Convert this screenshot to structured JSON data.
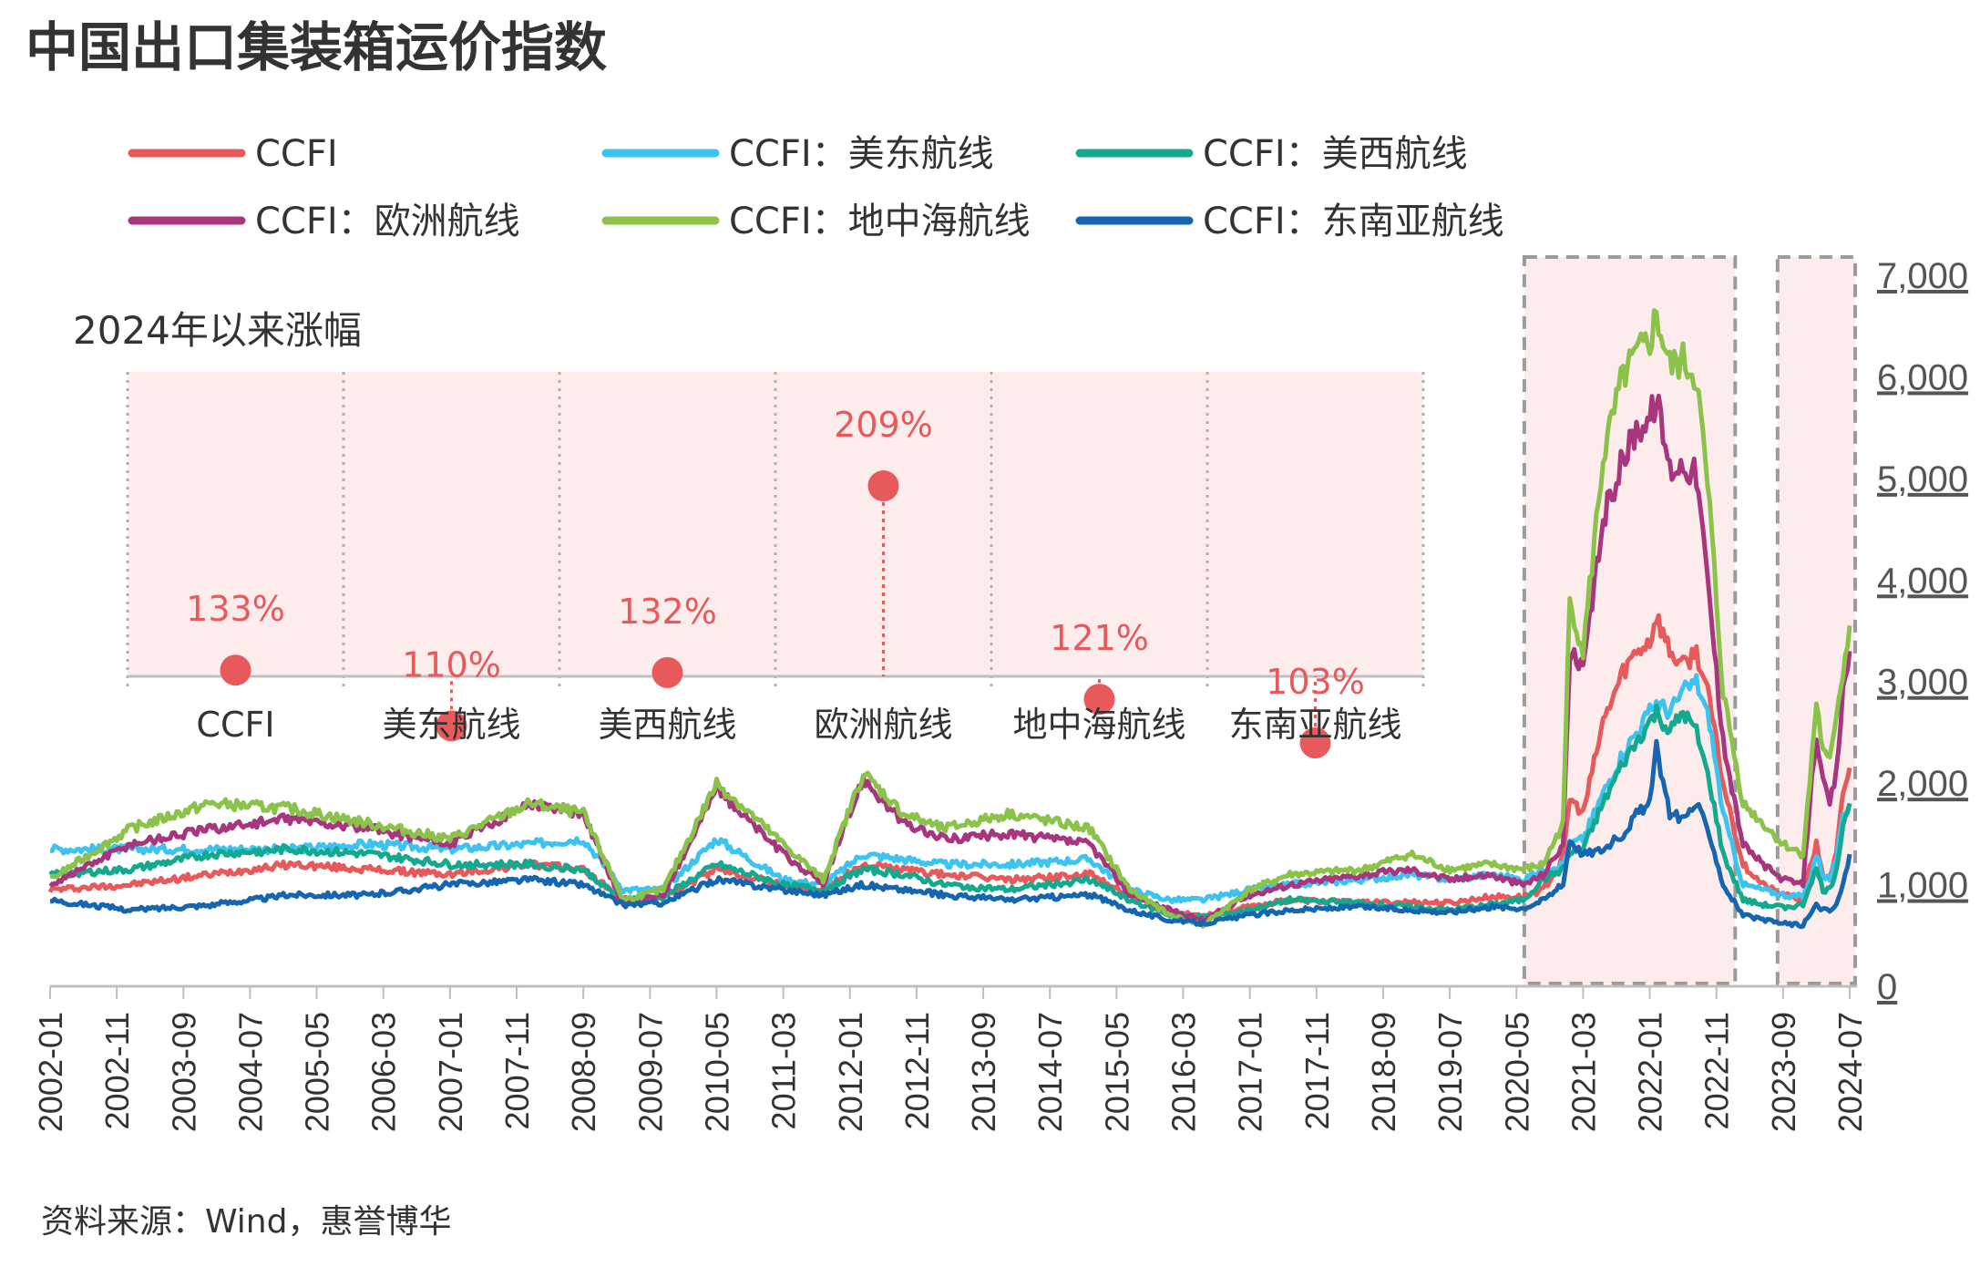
{
  "title": "中国出口集装箱运价指数",
  "source": "资料来源：Wind，惠誉博华",
  "colors": {
    "highlight_fill": "#fcecec",
    "highlight_stroke": "#9b9b9b",
    "accent": "#e8595c",
    "axis": "#bfbfbf"
  },
  "legend": [
    {
      "label": "CCFI",
      "color": "#e8595c"
    },
    {
      "label": "CCFI：美东航线",
      "color": "#3cc3f0"
    },
    {
      "label": "CCFI：美西航线",
      "color": "#14a88f"
    },
    {
      "label": "CCFI：欧洲航线",
      "color": "#a8367f"
    },
    {
      "label": "CCFI：地中海航线",
      "color": "#8bc34a"
    },
    {
      "label": "CCFI：东南亚航线",
      "color": "#1565b0"
    }
  ],
  "inset": {
    "title": "2024年以来涨幅",
    "items": [
      {
        "category": "CCFI",
        "value": 133,
        "label": "133%"
      },
      {
        "category": "美东航线",
        "value": 110,
        "label": "110%"
      },
      {
        "category": "美西航线",
        "value": 132,
        "label": "132%"
      },
      {
        "category": "欧洲航线",
        "value": 209,
        "label": "209%"
      },
      {
        "category": "地中海航线",
        "value": 121,
        "label": "121%"
      },
      {
        "category": "东南亚航线",
        "value": 103,
        "label": "103%"
      }
    ]
  },
  "chart_data": {
    "type": "line",
    "title": "中国出口集装箱运价指数",
    "ylim": [
      0,
      7000
    ],
    "yticks": [
      "0",
      "1,000",
      "2,000",
      "3,000",
      "4,000",
      "5,000",
      "6,000",
      "7,000"
    ],
    "x_tick_labels": [
      "2002-01",
      "2002-11",
      "2003-09",
      "2004-07",
      "2005-05",
      "2006-03",
      "2007-01",
      "2007-11",
      "2008-09",
      "2009-07",
      "2010-05",
      "2011-03",
      "2012-01",
      "2012-11",
      "2013-09",
      "2014-07",
      "2015-05",
      "2016-03",
      "2017-01",
      "2017-11",
      "2018-09",
      "2019-07",
      "2020-05",
      "2021-03",
      "2022-01",
      "2022-11",
      "2023-09",
      "2024-07"
    ],
    "x_range": [
      "2002-01",
      "2024-07"
    ],
    "highlight_periods": [
      [
        "2020-07",
        "2023-01"
      ],
      [
        "2023-09",
        "2024-07"
      ]
    ],
    "legend_position": "top",
    "grid": false,
    "series": [
      {
        "name": "CCFI",
        "x": [
          "2002-01",
          "2003-01",
          "2004-01",
          "2005-01",
          "2006-01",
          "2007-01",
          "2008-01",
          "2008-09",
          "2009-03",
          "2009-09",
          "2010-05",
          "2011-03",
          "2011-09",
          "2012-03",
          "2012-09",
          "2013-03",
          "2014-01",
          "2015-01",
          "2015-07",
          "2016-01",
          "2016-06",
          "2017-01",
          "2017-07",
          "2018-06",
          "2019-01",
          "2019-07",
          "2020-01",
          "2020-06",
          "2020-09",
          "2020-12",
          "2021-01",
          "2021-03",
          "2021-06",
          "2021-09",
          "2021-11",
          "2022-01",
          "2022-02",
          "2022-04",
          "2022-06",
          "2022-08",
          "2022-10",
          "2022-12",
          "2023-03",
          "2023-06",
          "2023-09",
          "2023-12",
          "2024-01",
          "2024-02",
          "2024-03",
          "2024-04",
          "2024-05",
          "2024-06",
          "2024-07"
        ],
        "values": [
          950,
          1000,
          1100,
          1200,
          1150,
          1100,
          1200,
          1150,
          850,
          880,
          1150,
          1000,
          950,
          1200,
          1150,
          1100,
          1050,
          1100,
          900,
          720,
          700,
          780,
          850,
          820,
          830,
          820,
          880,
          880,
          950,
          1250,
          1850,
          1700,
          2600,
          3100,
          3300,
          3400,
          3650,
          3300,
          3150,
          3300,
          2800,
          2000,
          1200,
          1000,
          900,
          850,
          1150,
          1400,
          1100,
          1050,
          1300,
          1900,
          2150
        ]
      },
      {
        "name": "CCFI：美东航线",
        "x": [
          "2002-01",
          "2003-01",
          "2004-01",
          "2005-01",
          "2006-01",
          "2007-01",
          "2008-01",
          "2008-09",
          "2009-03",
          "2009-09",
          "2010-05",
          "2011-03",
          "2011-09",
          "2012-03",
          "2012-09",
          "2013-03",
          "2014-01",
          "2015-01",
          "2015-07",
          "2016-01",
          "2016-06",
          "2017-01",
          "2017-07",
          "2018-06",
          "2019-01",
          "2019-07",
          "2020-01",
          "2020-06",
          "2020-09",
          "2020-12",
          "2021-01",
          "2021-03",
          "2021-06",
          "2021-09",
          "2021-11",
          "2022-01",
          "2022-02",
          "2022-04",
          "2022-06",
          "2022-08",
          "2022-10",
          "2022-12",
          "2023-03",
          "2023-06",
          "2023-09",
          "2023-12",
          "2024-01",
          "2024-02",
          "2024-03",
          "2024-04",
          "2024-05",
          "2024-06",
          "2024-07"
        ],
        "values": [
          1350,
          1350,
          1350,
          1350,
          1400,
          1350,
          1400,
          1450,
          950,
          950,
          1450,
          1050,
          1000,
          1300,
          1250,
          1200,
          1200,
          1250,
          950,
          850,
          850,
          950,
          1000,
          1050,
          1100,
          1050,
          1100,
          1050,
          1150,
          1200,
          1400,
          1450,
          1900,
          2300,
          2500,
          2700,
          2800,
          2700,
          2900,
          3000,
          2600,
          1700,
          1000,
          950,
          900,
          880,
          1050,
          1300,
          1100,
          1050,
          1250,
          1650,
          1800
        ]
      },
      {
        "name": "CCFI：美西航线",
        "x": [
          "2002-01",
          "2003-01",
          "2004-01",
          "2005-01",
          "2006-01",
          "2007-01",
          "2008-01",
          "2008-09",
          "2009-03",
          "2009-09",
          "2010-05",
          "2011-03",
          "2011-09",
          "2012-03",
          "2012-09",
          "2013-03",
          "2014-01",
          "2015-01",
          "2015-07",
          "2016-01",
          "2016-06",
          "2017-01",
          "2017-07",
          "2018-06",
          "2019-01",
          "2019-07",
          "2020-01",
          "2020-06",
          "2020-09",
          "2020-12",
          "2021-01",
          "2021-03",
          "2021-06",
          "2021-09",
          "2021-11",
          "2022-01",
          "2022-02",
          "2022-04",
          "2022-06",
          "2022-08",
          "2022-10",
          "2022-12",
          "2023-03",
          "2023-06",
          "2023-09",
          "2023-12",
          "2024-01",
          "2024-02",
          "2024-03",
          "2024-04",
          "2024-05",
          "2024-06",
          "2024-07"
        ],
        "values": [
          1100,
          1150,
          1300,
          1350,
          1300,
          1200,
          1200,
          1150,
          850,
          880,
          1200,
          1000,
          950,
          1150,
          1100,
          1000,
          950,
          1050,
          850,
          700,
          680,
          750,
          850,
          820,
          780,
          750,
          800,
          850,
          1050,
          1150,
          1300,
          1350,
          1800,
          2200,
          2400,
          2600,
          2700,
          2500,
          2700,
          2500,
          2000,
          1300,
          850,
          800,
          780,
          800,
          1000,
          1150,
          950,
          950,
          1150,
          1600,
          1800
        ]
      },
      {
        "name": "CCFI：欧洲航线",
        "x": [
          "2002-01",
          "2003-01",
          "2004-01",
          "2005-01",
          "2006-01",
          "2007-01",
          "2008-01",
          "2008-09",
          "2009-03",
          "2009-09",
          "2010-05",
          "2011-03",
          "2011-09",
          "2012-03",
          "2012-09",
          "2013-03",
          "2014-01",
          "2015-01",
          "2015-07",
          "2016-01",
          "2016-06",
          "2017-01",
          "2017-07",
          "2018-06",
          "2019-01",
          "2019-07",
          "2020-01",
          "2020-06",
          "2020-09",
          "2020-12",
          "2021-01",
          "2021-03",
          "2021-06",
          "2021-09",
          "2021-11",
          "2022-01",
          "2022-02",
          "2022-04",
          "2022-06",
          "2022-08",
          "2022-10",
          "2022-12",
          "2023-03",
          "2023-06",
          "2023-09",
          "2023-12",
          "2024-01",
          "2024-02",
          "2024-03",
          "2024-04",
          "2024-05",
          "2024-06",
          "2024-07"
        ],
        "values": [
          1000,
          1400,
          1550,
          1650,
          1550,
          1400,
          1800,
          1700,
          800,
          900,
          1950,
          1300,
          1000,
          2050,
          1600,
          1450,
          1500,
          1400,
          900,
          750,
          650,
          900,
          1000,
          1100,
          1150,
          1050,
          1100,
          1000,
          1100,
          1400,
          3300,
          3100,
          4600,
          5200,
          5500,
          5600,
          5800,
          5100,
          5150,
          5050,
          3800,
          2400,
          1400,
          1200,
          1050,
          1000,
          1800,
          2500,
          2000,
          1800,
          2100,
          2900,
          3300
        ]
      },
      {
        "name": "CCFI：地中海航线",
        "x": [
          "2002-01",
          "2003-01",
          "2004-01",
          "2005-01",
          "2006-01",
          "2007-01",
          "2008-01",
          "2008-09",
          "2009-03",
          "2009-09",
          "2010-05",
          "2011-03",
          "2011-09",
          "2012-03",
          "2012-09",
          "2013-03",
          "2014-01",
          "2015-01",
          "2015-07",
          "2016-01",
          "2016-06",
          "2017-01",
          "2017-07",
          "2018-06",
          "2019-01",
          "2019-07",
          "2020-01",
          "2020-06",
          "2020-09",
          "2020-12",
          "2021-01",
          "2021-03",
          "2021-06",
          "2021-09",
          "2021-11",
          "2022-01",
          "2022-02",
          "2022-04",
          "2022-06",
          "2022-08",
          "2022-10",
          "2022-12",
          "2023-03",
          "2023-06",
          "2023-09",
          "2023-12",
          "2024-01",
          "2024-02",
          "2024-03",
          "2024-04",
          "2024-05",
          "2024-06",
          "2024-07"
        ],
        "values": [
          1050,
          1550,
          1800,
          1750,
          1600,
          1450,
          1800,
          1700,
          850,
          950,
          2000,
          1400,
          1050,
          2100,
          1700,
          1550,
          1700,
          1550,
          950,
          700,
          600,
          950,
          1100,
          1150,
          1300,
          1150,
          1200,
          1150,
          1200,
          1600,
          3800,
          3300,
          5200,
          6000,
          6200,
          6350,
          6600,
          6100,
          6150,
          6000,
          4700,
          2900,
          1800,
          1600,
          1400,
          1300,
          2000,
          2800,
          2300,
          2200,
          2700,
          3100,
          3550
        ]
      },
      {
        "name": "CCFI：东南亚航线",
        "x": [
          "2002-01",
          "2003-01",
          "2004-01",
          "2005-01",
          "2006-01",
          "2007-01",
          "2008-01",
          "2008-09",
          "2009-03",
          "2009-09",
          "2010-05",
          "2011-03",
          "2011-09",
          "2012-03",
          "2012-09",
          "2013-03",
          "2014-01",
          "2015-01",
          "2015-07",
          "2016-01",
          "2016-06",
          "2017-01",
          "2017-07",
          "2018-06",
          "2019-01",
          "2019-07",
          "2020-01",
          "2020-06",
          "2020-09",
          "2020-12",
          "2021-01",
          "2021-03",
          "2021-06",
          "2021-09",
          "2021-11",
          "2022-01",
          "2022-02",
          "2022-04",
          "2022-06",
          "2022-08",
          "2022-10",
          "2022-12",
          "2023-03",
          "2023-06",
          "2023-09",
          "2023-12",
          "2024-01",
          "2024-02",
          "2024-03",
          "2024-04",
          "2024-05",
          "2024-06",
          "2024-07"
        ],
        "values": [
          850,
          750,
          800,
          900,
          900,
          1000,
          1050,
          1000,
          800,
          820,
          1050,
          950,
          900,
          1000,
          950,
          900,
          850,
          900,
          750,
          650,
          620,
          700,
          750,
          780,
          750,
          730,
          780,
          770,
          850,
          1000,
          1450,
          1300,
          1350,
          1500,
          1700,
          1800,
          2350,
          1700,
          1650,
          1800,
          1500,
          1000,
          700,
          650,
          620,
          600,
          700,
          800,
          760,
          740,
          800,
          1000,
          1300
        ]
      }
    ]
  }
}
